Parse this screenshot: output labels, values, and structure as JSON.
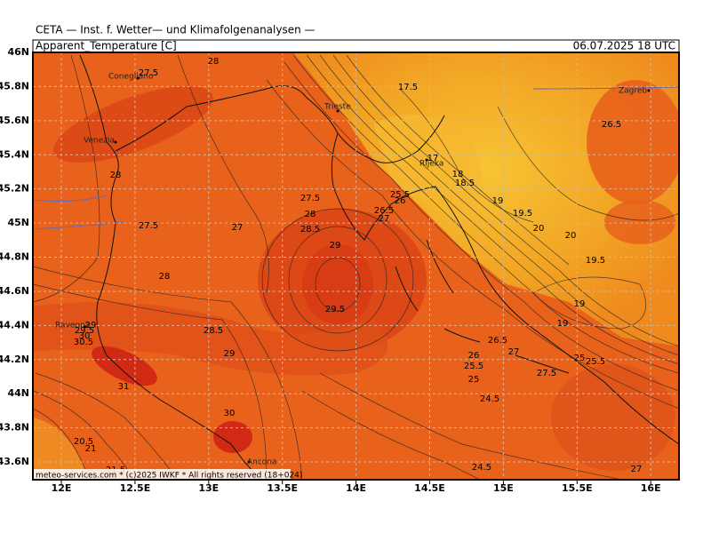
{
  "header": {
    "title": "CETA — Inst. f. Wetter— und Klimafolgenanalysen —",
    "variable": "Apparent_Temperature [C]",
    "valid_time": "06.07.2025 18 UTC"
  },
  "map": {
    "lat_labels": [
      "46N",
      "45.8N",
      "45.6N",
      "45.4N",
      "45.2N",
      "45N",
      "44.8N",
      "44.6N",
      "44.4N",
      "44.2N",
      "44N",
      "43.8N",
      "43.6N"
    ],
    "lon_labels": [
      "12E",
      "12.5E",
      "13E",
      "13.5E",
      "14E",
      "14.5E",
      "15E",
      "15.5E",
      "16E"
    ],
    "cities": [
      "Conegliano",
      "Venezia",
      "Trieste",
      "Rijeka",
      "Zagreb",
      "Ravenna",
      "Ancona"
    ],
    "contour_labels": [
      "27.5",
      "28",
      "17.5",
      "26.5",
      "28",
      "27.5",
      "27",
      "17",
      "18",
      "18.5",
      "19",
      "19.5",
      "20",
      "20",
      "19.5",
      "19",
      "27.5",
      "28",
      "28.5",
      "29",
      "25.5",
      "26",
      "26.5",
      "27",
      "28",
      "29.5",
      "28.5",
      "29",
      "31",
      "29",
      "29.5",
      "30",
      "30.5",
      "26.5",
      "27",
      "26",
      "25.5",
      "25",
      "27.5",
      "24.5",
      "30",
      "20.5",
      "21",
      "21.5",
      "24.5",
      "27",
      "19",
      "25",
      "25.5"
    ],
    "credit": "meteo-services.com * (c)2025 IWKF * All rights reserved (18+024)"
  }
}
